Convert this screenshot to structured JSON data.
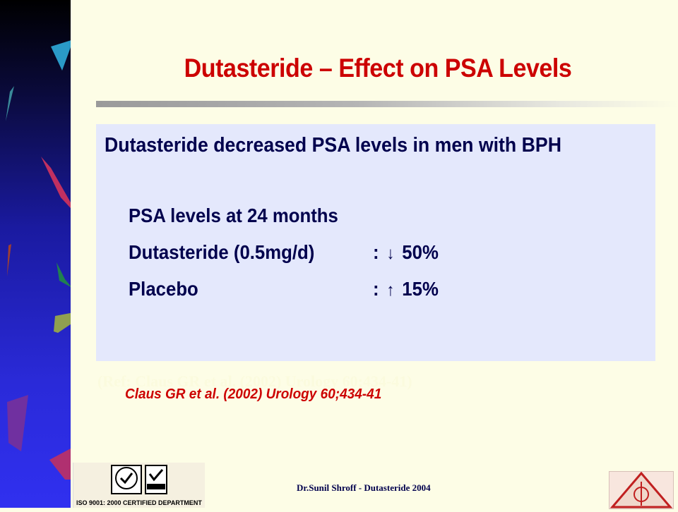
{
  "slide": {
    "title": "Dutasteride – Effect on PSA Levels",
    "heading": "Dutasteride decreased PSA levels in men with BPH",
    "rows": [
      {
        "label": "PSA levels  at 24 months",
        "value": ""
      },
      {
        "label": "Dutasteride (0.5mg/d)",
        "value": ":  50%",
        "arrow": "↓"
      },
      {
        "label": "Placebo",
        "value": ":  15%",
        "arrow": "↑"
      }
    ],
    "row_values": {
      "r1_prefix": ":",
      "r1_arrow": "↓",
      "r1_pct": "50%",
      "r2_prefix": ":",
      "r2_arrow": "↑",
      "r2_pct": "15%"
    },
    "ghost_reference": "(Ref: Claus GR et al. (2002) Urology 60;434-41)",
    "citation": "Claus GR et al. (2002) Urology 60;434-41",
    "footer": "Dr.Sunil Shroff - Dutasteride 2004",
    "iso_caption": "ISO 9001: 2000 CERTIFIED DEPARTMENT"
  },
  "colors": {
    "title": "#cc0000",
    "body_text": "#00004d",
    "content_bg": "#e4e8fc",
    "page_bg": "#fdfde6"
  }
}
